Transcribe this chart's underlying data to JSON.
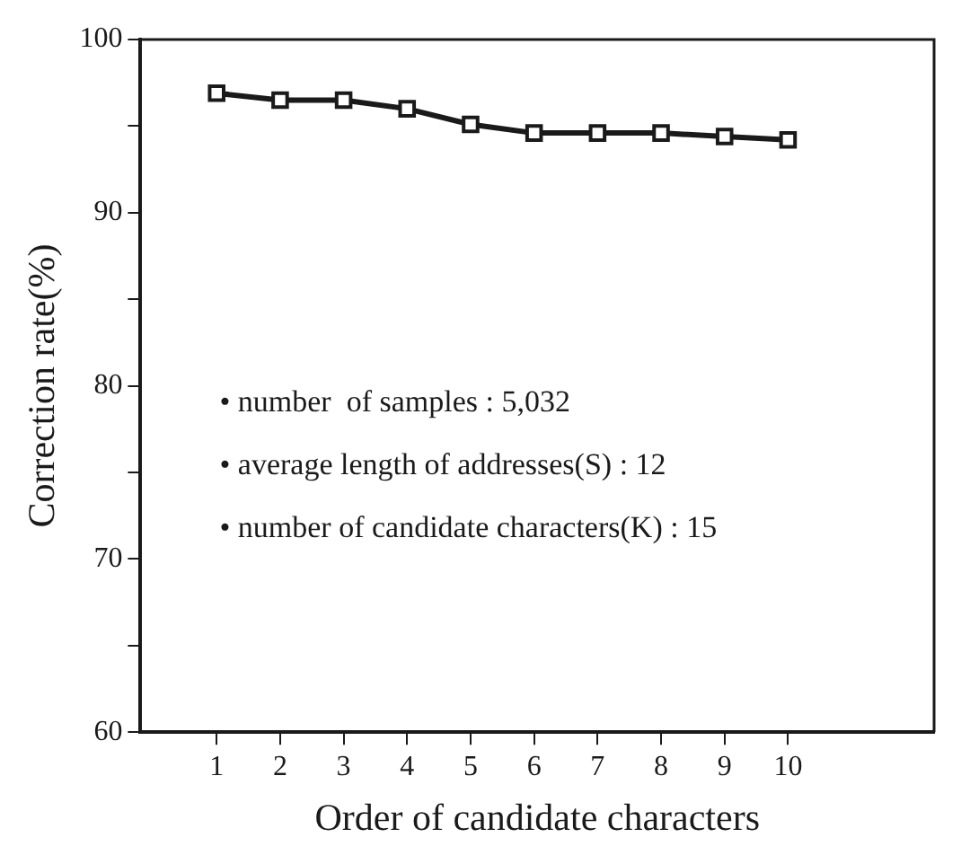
{
  "chart_data": {
    "type": "line",
    "xlabel": "Order of candidate characters",
    "ylabel": "Correction rate(%)",
    "x": [
      1,
      2,
      3,
      4,
      5,
      6,
      7,
      8,
      9,
      10
    ],
    "series": [
      {
        "color": "#1a1a1a",
        "values": [
          96.9,
          96.5,
          96.5,
          96.0,
          95.1,
          94.6,
          94.6,
          94.6,
          94.4,
          94.2
        ]
      }
    ],
    "xlim": [
      -0.2,
      12.3
    ],
    "xticks": [
      1,
      2,
      3,
      4,
      5,
      6,
      7,
      8,
      9,
      10
    ],
    "ylim": [
      60,
      100
    ],
    "yticks": [
      60,
      {
        "value": 65,
        "label": null
      },
      70,
      {
        "value": 75,
        "label": null
      },
      80,
      {
        "value": 85,
        "label": null
      },
      90,
      {
        "value": 95,
        "label": null
      },
      100
    ],
    "grid": false,
    "legend": false,
    "marker": "square",
    "line_style": "solid",
    "annotations": [
      "• number  of samples : 5,032",
      "• average length of addresses(S) : 12",
      "• number of candidate characters(K) : 15"
    ]
  }
}
